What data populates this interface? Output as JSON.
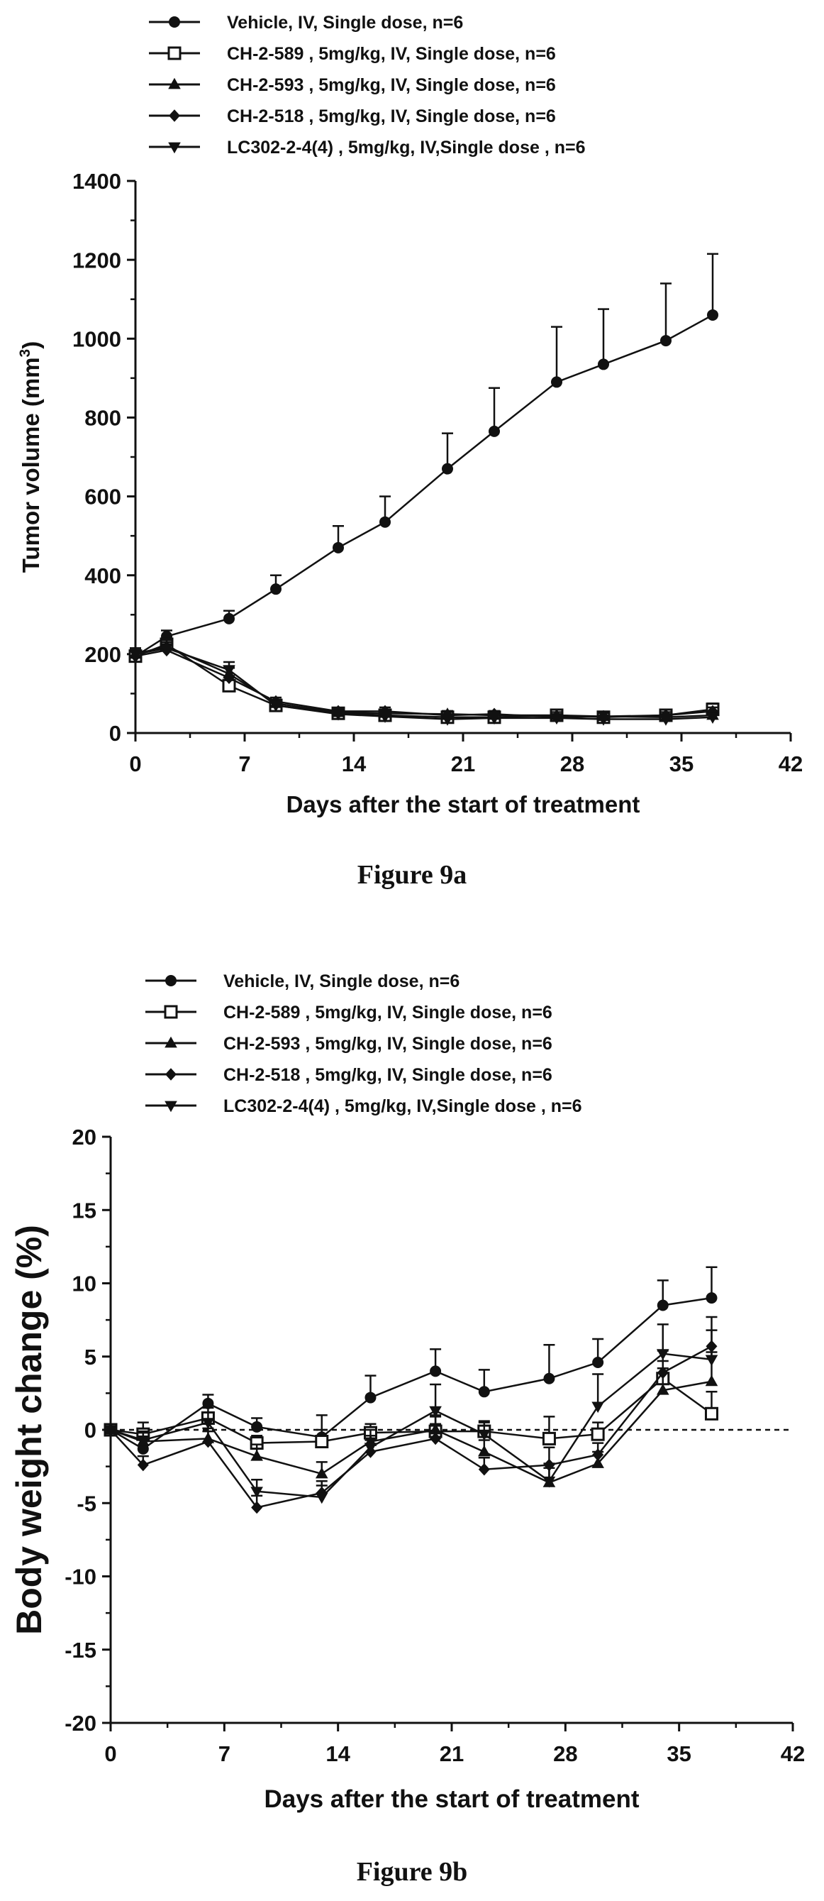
{
  "chart_data": [
    {
      "type": "line",
      "caption": "Figure 9a",
      "title": "",
      "xlabel": "Days after the start of treatment",
      "ylabel_main": "Tumor volume (mm",
      "ylabel_sup": "3",
      "ylabel_end": ")",
      "xlim": [
        0,
        42
      ],
      "ylim": [
        0,
        1400
      ],
      "xticks": [
        0,
        7,
        14,
        21,
        28,
        35,
        42
      ],
      "yticks": [
        0,
        200,
        400,
        600,
        800,
        1000,
        1200,
        1400
      ],
      "grid": false,
      "legend_position": "top-left",
      "x": [
        0,
        2,
        6,
        9,
        13,
        16,
        20,
        23,
        27,
        30,
        34,
        37
      ],
      "series": [
        {
          "name": "Vehicle, IV, Single dose, n=6",
          "marker": "circle-filled",
          "values": [
            195,
            245,
            290,
            365,
            470,
            535,
            670,
            765,
            890,
            935,
            995,
            1060
          ],
          "errors": [
            20,
            15,
            20,
            35,
            55,
            65,
            90,
            110,
            140,
            140,
            145,
            155
          ]
        },
        {
          "name": "CH-2-589 , 5mg/kg, IV, Single dose, n=6",
          "marker": "square-open",
          "values": [
            195,
            225,
            120,
            70,
            50,
            45,
            40,
            40,
            45,
            40,
            45,
            60
          ],
          "errors": [
            15,
            15,
            25,
            10,
            8,
            10,
            8,
            8,
            8,
            8,
            10,
            15
          ]
        },
        {
          "name": "CH-2-593 , 5mg/kg, IV, Single dose, n=6",
          "marker": "triangle-up-filled",
          "values": [
            200,
            220,
            150,
            75,
            52,
            50,
            48,
            45,
            45,
            42,
            40,
            45
          ],
          "errors": [
            15,
            15,
            20,
            10,
            8,
            10,
            8,
            8,
            8,
            8,
            8,
            10
          ]
        },
        {
          "name": "CH-2-518 , 5mg/kg, IV, Single dose, n=6",
          "marker": "diamond-filled",
          "values": [
            195,
            210,
            140,
            80,
            55,
            55,
            45,
            48,
            40,
            42,
            45,
            55
          ],
          "errors": [
            15,
            15,
            25,
            10,
            8,
            10,
            8,
            8,
            8,
            8,
            8,
            10
          ]
        },
        {
          "name": "LC302-2-4(4) , 5mg/kg, IV,Single dose , n=6",
          "marker": "triangle-down-filled",
          "values": [
            200,
            215,
            160,
            70,
            48,
            42,
            35,
            38,
            38,
            35,
            35,
            40
          ],
          "errors": [
            15,
            15,
            20,
            10,
            8,
            8,
            8,
            8,
            8,
            8,
            8,
            10
          ]
        }
      ]
    },
    {
      "type": "line",
      "caption": "Figure 9b",
      "title": "",
      "xlabel": "Days after the start of treatment",
      "ylabel_main": "Body weight change (%)",
      "xlim": [
        0,
        42
      ],
      "ylim": [
        -20,
        20
      ],
      "xticks": [
        0,
        7,
        14,
        21,
        28,
        35,
        42
      ],
      "yticks": [
        -20,
        -15,
        -10,
        -5,
        0,
        5,
        10,
        15,
        20
      ],
      "reference_line_y": 0,
      "grid": false,
      "legend_position": "top-left",
      "x": [
        0,
        2,
        6,
        9,
        13,
        16,
        20,
        23,
        27,
        30,
        34,
        37
      ],
      "series": [
        {
          "name": "Vehicle, IV, Single dose, n=6",
          "marker": "circle-filled",
          "values": [
            0,
            -1.3,
            1.8,
            0.2,
            -0.5,
            2.2,
            4.0,
            2.6,
            3.5,
            4.6,
            8.5,
            9.0
          ],
          "errors": [
            0,
            0.8,
            0.6,
            0.6,
            1.5,
            1.5,
            1.5,
            1.5,
            2.3,
            1.6,
            1.7,
            2.1
          ]
        },
        {
          "name": "CH-2-589 , 5mg/kg, IV, Single dose, n=6",
          "marker": "square-open",
          "values": [
            0,
            -0.3,
            0.8,
            -0.9,
            -0.8,
            -0.2,
            -0.1,
            -0.1,
            -0.6,
            -0.3,
            3.5,
            1.1
          ],
          "errors": [
            0,
            0.8,
            0.7,
            0.5,
            0.8,
            0.6,
            1.0,
            0.7,
            1.5,
            0.8,
            1.2,
            1.5
          ]
        },
        {
          "name": "CH-2-593 , 5mg/kg, IV, Single dose, n=6",
          "marker": "triangle-up-filled",
          "values": [
            0,
            -0.8,
            -0.6,
            -1.8,
            -3.0,
            -0.8,
            0.0,
            -1.5,
            -3.6,
            -2.3,
            2.7,
            3.3
          ],
          "errors": [
            0,
            0.6,
            0.7,
            0.8,
            0.8,
            0.8,
            1.0,
            0.8,
            1.0,
            0.8,
            1.5,
            2.0
          ]
        },
        {
          "name": "CH-2-518 , 5mg/kg, IV, Single dose, n=6",
          "marker": "diamond-filled",
          "values": [
            0,
            -2.4,
            -0.8,
            -5.3,
            -4.3,
            -1.5,
            -0.6,
            -2.7,
            -2.4,
            -1.7,
            3.9,
            5.7
          ],
          "errors": [
            0,
            0.6,
            0.7,
            0.8,
            0.8,
            0.8,
            1.0,
            0.8,
            1.2,
            0.8,
            1.5,
            2.0
          ]
        },
        {
          "name": "LC302-2-4(4) , 5mg/kg, IV,Single dose , n=6",
          "marker": "triangle-down-filled",
          "values": [
            0,
            -0.7,
            0.5,
            -4.2,
            -4.6,
            -1.2,
            1.3,
            -0.3,
            -3.5,
            1.6,
            5.2,
            4.8
          ],
          "errors": [
            0,
            0.6,
            0.7,
            0.8,
            0.8,
            0.8,
            1.8,
            0.8,
            1.2,
            2.2,
            2.0,
            2.0
          ]
        }
      ]
    }
  ]
}
